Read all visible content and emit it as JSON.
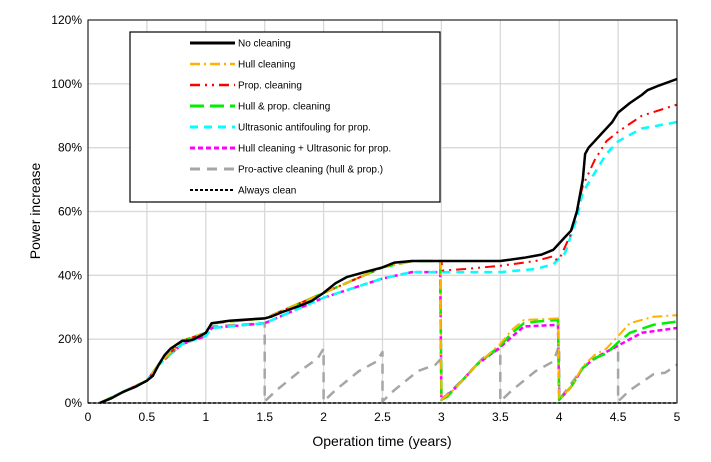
{
  "chart_data": {
    "type": "line",
    "title": "",
    "xlabel": "Operation time (years)",
    "ylabel": "Power increase",
    "xlim": [
      0,
      5
    ],
    "ylim": [
      0,
      120
    ],
    "xticks": [
      "0",
      "0.5",
      "1",
      "1.5",
      "2",
      "2.5",
      "3",
      "3.5",
      "4",
      "4.5",
      "5"
    ],
    "yticks": [
      "0%",
      "20%",
      "40%",
      "60%",
      "80%",
      "100%",
      "120%"
    ],
    "grid": true,
    "legend_position": "top-left",
    "series": [
      {
        "name": "No cleaning",
        "color": "#000000",
        "dash": "",
        "width": 2.5,
        "points": [
          [
            0.1,
            0
          ],
          [
            0.2,
            1.5
          ],
          [
            0.3,
            3.5
          ],
          [
            0.4,
            5
          ],
          [
            0.5,
            7
          ],
          [
            0.55,
            8.5
          ],
          [
            0.6,
            12
          ],
          [
            0.65,
            15
          ],
          [
            0.7,
            17
          ],
          [
            0.8,
            19.5
          ],
          [
            0.85,
            19.5
          ],
          [
            0.9,
            20
          ],
          [
            0.95,
            21
          ],
          [
            1,
            22
          ],
          [
            1.05,
            25
          ],
          [
            1.2,
            25.8
          ],
          [
            1.4,
            26.3
          ],
          [
            1.5,
            26.5
          ],
          [
            1.55,
            27
          ],
          [
            1.65,
            28.5
          ],
          [
            1.8,
            30.5
          ],
          [
            1.9,
            32
          ],
          [
            2,
            34.5
          ],
          [
            2.1,
            37.5
          ],
          [
            2.2,
            39.5
          ],
          [
            2.35,
            41
          ],
          [
            2.5,
            42.5
          ],
          [
            2.6,
            44
          ],
          [
            2.75,
            44.5
          ],
          [
            3,
            44.5
          ],
          [
            3.5,
            44.5
          ],
          [
            3.7,
            45.5
          ],
          [
            3.85,
            46.5
          ],
          [
            3.95,
            48
          ],
          [
            4,
            50
          ],
          [
            4.05,
            52
          ],
          [
            4.1,
            54
          ],
          [
            4.15,
            60
          ],
          [
            4.2,
            70
          ],
          [
            4.22,
            78
          ],
          [
            4.25,
            80
          ],
          [
            4.3,
            82
          ],
          [
            4.35,
            84
          ],
          [
            4.45,
            88
          ],
          [
            4.5,
            91
          ],
          [
            4.6,
            94
          ],
          [
            4.7,
            96.5
          ],
          [
            4.75,
            98
          ],
          [
            4.85,
            99.5
          ],
          [
            5,
            101.5
          ]
        ]
      },
      {
        "name": "Hull cleaning",
        "color": "#FFB000",
        "dash": "10 4 2 4",
        "width": 2,
        "points": [
          [
            0.1,
            0
          ],
          [
            0.5,
            7
          ],
          [
            0.6,
            12
          ],
          [
            0.8,
            19.5
          ],
          [
            1,
            22
          ],
          [
            1.05,
            25
          ],
          [
            1.5,
            26.5
          ],
          [
            2,
            34.5
          ],
          [
            2.5,
            42.5
          ],
          [
            2.75,
            44.5
          ],
          [
            2.99,
            44.5
          ],
          [
            3,
            1
          ],
          [
            3.1,
            4
          ],
          [
            3.2,
            8
          ],
          [
            3.3,
            12
          ],
          [
            3.5,
            18.5
          ],
          [
            3.6,
            23
          ],
          [
            3.7,
            26
          ],
          [
            3.99,
            26.5
          ],
          [
            4,
            1
          ],
          [
            4.1,
            5
          ],
          [
            4.2,
            11.5
          ],
          [
            4.3,
            15
          ],
          [
            4.4,
            17
          ],
          [
            4.5,
            21
          ],
          [
            4.6,
            25
          ],
          [
            4.8,
            27
          ],
          [
            5,
            27.5
          ]
        ]
      },
      {
        "name": "Prop. cleaning",
        "color": "#FF0000",
        "dash": "10 5 2 5 2 5",
        "width": 2,
        "points": [
          [
            0.1,
            0
          ],
          [
            0.5,
            7
          ],
          [
            0.6,
            12
          ],
          [
            0.8,
            19.5
          ],
          [
            1,
            22
          ],
          [
            1.05,
            25
          ],
          [
            1.5,
            26.5
          ],
          [
            2,
            34.5
          ],
          [
            2.5,
            42.5
          ],
          [
            2.75,
            44.5
          ],
          [
            3,
            44.5
          ],
          [
            3.01,
            41.5
          ],
          [
            3.2,
            42
          ],
          [
            3.5,
            43
          ],
          [
            3.8,
            44.5
          ],
          [
            3.95,
            46
          ],
          [
            3.97,
            45
          ],
          [
            4,
            45
          ],
          [
            4.1,
            53
          ],
          [
            4.2,
            68
          ],
          [
            4.3,
            76
          ],
          [
            4.4,
            82
          ],
          [
            4.5,
            85
          ],
          [
            4.7,
            90
          ],
          [
            5,
            93.5
          ]
        ]
      },
      {
        "name": "Hull & prop. cleaning",
        "color": "#00EE00",
        "dash": "14 6",
        "width": 2.5,
        "points": [
          [
            0.1,
            0
          ],
          [
            0.5,
            7
          ],
          [
            0.6,
            12
          ],
          [
            0.8,
            19.5
          ],
          [
            1,
            22
          ],
          [
            1.05,
            25
          ],
          [
            1.5,
            26.5
          ],
          [
            2,
            34.5
          ],
          [
            2.5,
            42.5
          ],
          [
            2.75,
            44.5
          ],
          [
            2.99,
            44.5
          ],
          [
            3,
            1
          ],
          [
            3.05,
            2
          ],
          [
            3.1,
            4
          ],
          [
            3.2,
            8
          ],
          [
            3.3,
            12
          ],
          [
            3.4,
            15
          ],
          [
            3.5,
            18
          ],
          [
            3.6,
            22
          ],
          [
            3.7,
            25
          ],
          [
            3.8,
            25.5
          ],
          [
            3.99,
            26
          ],
          [
            4,
            1
          ],
          [
            4.05,
            3
          ],
          [
            4.1,
            5
          ],
          [
            4.2,
            11
          ],
          [
            4.3,
            14
          ],
          [
            4.4,
            15.5
          ],
          [
            4.5,
            19
          ],
          [
            4.6,
            22
          ],
          [
            4.8,
            24.5
          ],
          [
            5,
            25.5
          ]
        ]
      },
      {
        "name": "Ultrasonic antifouling for prop.",
        "color": "#00FFFF",
        "dash": "8 6",
        "width": 2.5,
        "points": [
          [
            0.1,
            0
          ],
          [
            0.5,
            7
          ],
          [
            0.6,
            12
          ],
          [
            0.8,
            18.5
          ],
          [
            1,
            21
          ],
          [
            1.05,
            23.5
          ],
          [
            1.5,
            25
          ],
          [
            2,
            33
          ],
          [
            2.5,
            39
          ],
          [
            2.75,
            41
          ],
          [
            3,
            41
          ],
          [
            3.5,
            41
          ],
          [
            3.8,
            42
          ],
          [
            3.95,
            43.5
          ],
          [
            4.05,
            47
          ],
          [
            4.15,
            58
          ],
          [
            4.2,
            66
          ],
          [
            4.3,
            72
          ],
          [
            4.4,
            78
          ],
          [
            4.5,
            82
          ],
          [
            4.7,
            86
          ],
          [
            5,
            88
          ]
        ]
      },
      {
        "name": "Hull cleaning + Ultrasonic for prop.",
        "color": "#FF00FF",
        "dash": "5 3",
        "width": 2.5,
        "points": [
          [
            0.1,
            0
          ],
          [
            0.5,
            7
          ],
          [
            0.6,
            12
          ],
          [
            0.8,
            18.5
          ],
          [
            1,
            21
          ],
          [
            1.05,
            23.5
          ],
          [
            1.5,
            25
          ],
          [
            2,
            33
          ],
          [
            2.5,
            39
          ],
          [
            2.75,
            41
          ],
          [
            2.99,
            41
          ],
          [
            3,
            1
          ],
          [
            3.1,
            4
          ],
          [
            3.2,
            8
          ],
          [
            3.3,
            12
          ],
          [
            3.5,
            17.5
          ],
          [
            3.7,
            24
          ],
          [
            3.99,
            24.5
          ],
          [
            4,
            1
          ],
          [
            4.1,
            5
          ],
          [
            4.2,
            11
          ],
          [
            4.3,
            14
          ],
          [
            4.5,
            18
          ],
          [
            4.7,
            22
          ],
          [
            5,
            23.5
          ]
        ]
      },
      {
        "name": "Pro-active cleaning (hull & prop.)",
        "color": "#A6A6A6",
        "dash": "10 7",
        "width": 2.5,
        "points": [
          [
            0.1,
            0
          ],
          [
            0.5,
            7
          ],
          [
            0.6,
            12
          ],
          [
            0.8,
            18.5
          ],
          [
            1,
            21
          ],
          [
            1.05,
            24
          ],
          [
            1.5,
            25
          ],
          [
            1.5,
            0.5
          ],
          [
            1.6,
            4
          ],
          [
            1.8,
            10
          ],
          [
            1.95,
            14
          ],
          [
            2,
            17
          ],
          [
            2,
            0.5
          ],
          [
            2.1,
            4
          ],
          [
            2.3,
            10
          ],
          [
            2.45,
            13
          ],
          [
            2.5,
            16
          ],
          [
            2.5,
            0.5
          ],
          [
            2.6,
            4
          ],
          [
            2.8,
            10
          ],
          [
            2.95,
            12
          ],
          [
            3,
            14
          ],
          [
            3,
            1
          ],
          [
            3.2,
            8
          ],
          [
            3.35,
            14
          ],
          [
            3.5,
            17
          ],
          [
            3.5,
            0.5
          ],
          [
            3.6,
            4
          ],
          [
            3.8,
            10
          ],
          [
            3.95,
            13
          ],
          [
            4,
            18
          ],
          [
            4,
            1
          ],
          [
            4.2,
            11
          ],
          [
            4.35,
            15
          ],
          [
            4.5,
            18
          ],
          [
            4.5,
            0.5
          ],
          [
            4.6,
            4
          ],
          [
            4.8,
            9
          ],
          [
            4.9,
            9.5
          ],
          [
            5,
            12
          ]
        ]
      },
      {
        "name": "Always clean",
        "color": "#000000",
        "dash": "3 2",
        "width": 1.5,
        "points": [
          [
            0,
            0
          ],
          [
            5,
            0
          ]
        ]
      }
    ]
  }
}
